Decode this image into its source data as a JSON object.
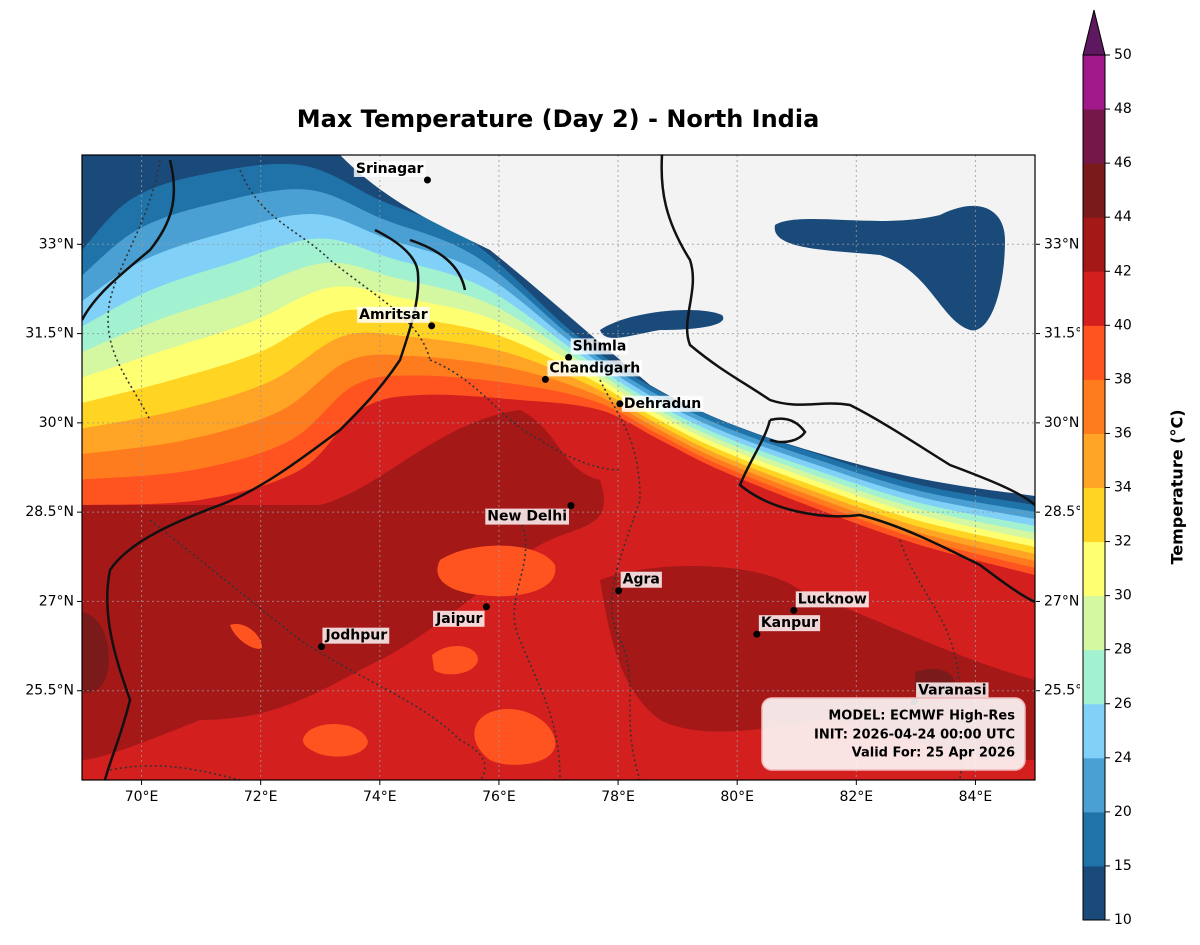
{
  "map": {
    "title": "Max Temperature (Day 2) - North India",
    "lonlim": [
      69,
      85
    ],
    "latlim": [
      24,
      34.5
    ],
    "lon_ticks": [
      {
        "value": 70,
        "label": "70°E"
      },
      {
        "value": 72,
        "label": "72°E"
      },
      {
        "value": 74,
        "label": "74°E"
      },
      {
        "value": 76,
        "label": "76°E"
      },
      {
        "value": 78,
        "label": "78°E"
      },
      {
        "value": 80,
        "label": "80°E"
      },
      {
        "value": 82,
        "label": "82°E"
      },
      {
        "value": 84,
        "label": "84°E"
      }
    ],
    "lat_ticks": [
      {
        "value": 25.5,
        "label": "25.5°N"
      },
      {
        "value": 27,
        "label": "27°N"
      },
      {
        "value": 28.5,
        "label": "28.5°N"
      },
      {
        "value": 30,
        "label": "30°N"
      },
      {
        "value": 31.5,
        "label": "31.5°N"
      },
      {
        "value": 33,
        "label": "33°N"
      }
    ],
    "grid": true,
    "cities": [
      {
        "name": "Srinagar",
        "lon": 74.8,
        "lat": 34.08
      },
      {
        "name": "Amritsar",
        "lon": 74.87,
        "lat": 31.63
      },
      {
        "name": "Shimla",
        "lon": 77.17,
        "lat": 31.1
      },
      {
        "name": "Chandigarh",
        "lon": 76.78,
        "lat": 30.73
      },
      {
        "name": "Dehradun",
        "lon": 78.03,
        "lat": 30.32
      },
      {
        "name": "New Delhi",
        "lon": 77.21,
        "lat": 28.61
      },
      {
        "name": "Agra",
        "lon": 78.01,
        "lat": 27.18
      },
      {
        "name": "Lucknow",
        "lon": 80.95,
        "lat": 26.85
      },
      {
        "name": "Kanpur",
        "lon": 80.33,
        "lat": 26.45
      },
      {
        "name": "Jaipur",
        "lon": 75.79,
        "lat": 26.91
      },
      {
        "name": "Jodhpur",
        "lon": 73.02,
        "lat": 26.24
      },
      {
        "name": "Varanasi",
        "lon": 82.97,
        "lat": 25.32
      }
    ],
    "colorbar": {
      "label": "Temperature (°C)",
      "ticks": [
        10,
        15,
        20,
        24,
        26,
        28,
        30,
        32,
        34,
        36,
        38,
        40,
        42,
        44,
        46,
        48,
        50
      ],
      "colors": [
        "#1a4a7a",
        "#1f73a8",
        "#4aa0d2",
        "#80d0f8",
        "#a2f2d2",
        "#d4f7a2",
        "#ffff72",
        "#ffd422",
        "#ffa424",
        "#ff7c1e",
        "#ff5420",
        "#d41f1f",
        "#a51818",
        "#7a1a1a",
        "#731848",
        "#a0188a"
      ],
      "extend_color": "#5e1860"
    },
    "info": [
      "MODEL: ECMWF High-Res",
      "INIT: 2026-04-24 00:00 UTC",
      "Valid For: 25 Apr 2026"
    ]
  }
}
